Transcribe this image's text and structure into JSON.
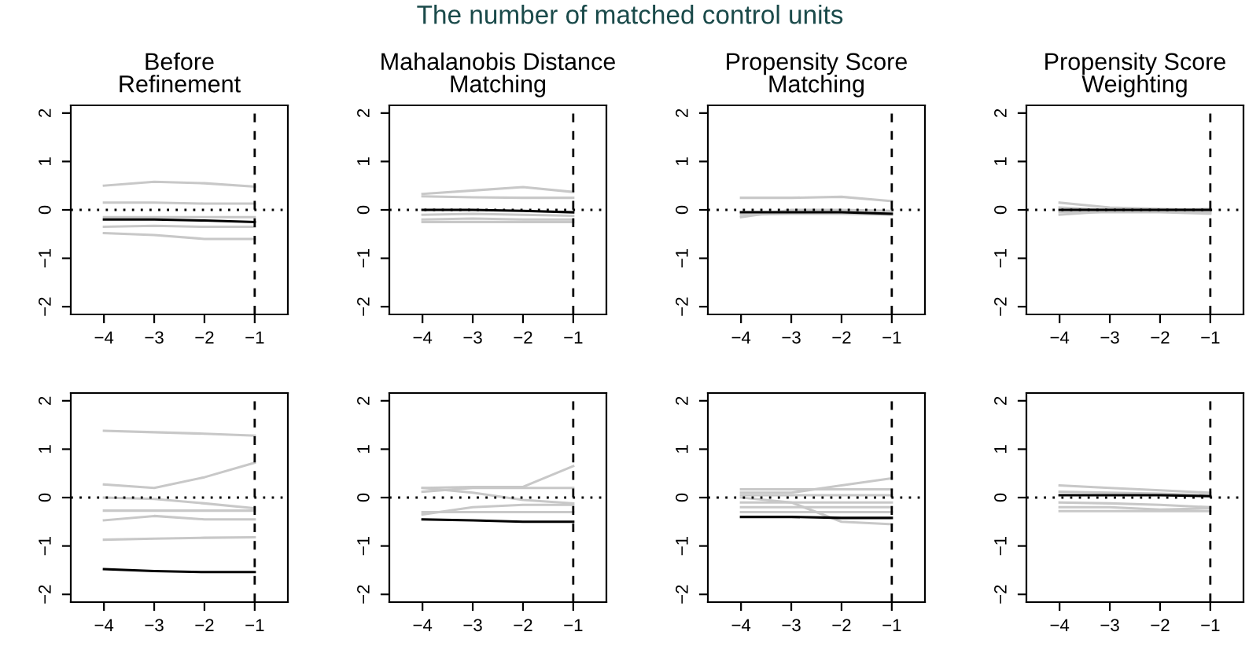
{
  "chart_data": [
    {
      "type": "line",
      "title": "Before\nRefinement",
      "annotations": [
        "The number of matched control units"
      ],
      "x": [
        -4,
        -3,
        -2,
        -1
      ],
      "xlim": [
        -4.66,
        -0.34
      ],
      "xticks": [
        -4,
        -3,
        -2,
        -1
      ],
      "ylim": [
        -2.16,
        2.16
      ],
      "yticks": [
        -2,
        -1,
        0,
        1,
        2
      ],
      "grid": false,
      "marker": "none",
      "line_style": "solid",
      "ref_lines": [
        {
          "axis": "y",
          "value": 0,
          "line_style": "dotted",
          "color": "#000000"
        },
        {
          "axis": "x",
          "value": -1,
          "line_style": "dashed",
          "color": "#000000"
        }
      ],
      "series": [
        {
          "color": "#c8c8c8",
          "values": [
            0.5,
            0.58,
            0.55,
            0.48
          ]
        },
        {
          "color": "#c8c8c8",
          "values": [
            0.15,
            0.15,
            0.13,
            0.13
          ]
        },
        {
          "color": "#c8c8c8",
          "values": [
            -0.15,
            -0.15,
            -0.15,
            -0.15
          ]
        },
        {
          "color": "#c8c8c8",
          "values": [
            -0.35,
            -0.33,
            -0.35,
            -0.35
          ]
        },
        {
          "color": "#c8c8c8",
          "values": [
            -0.48,
            -0.52,
            -0.6,
            -0.6
          ]
        },
        {
          "color": "#000000",
          "values": [
            -0.2,
            -0.2,
            -0.22,
            -0.25
          ]
        }
      ]
    },
    {
      "type": "line",
      "title": "Mahalanobis Distance\nMatching",
      "x": [
        -4,
        -3,
        -2,
        -1
      ],
      "xlim": [
        -4.66,
        -0.34
      ],
      "xticks": [
        -4,
        -3,
        -2,
        -1
      ],
      "ylim": [
        -2.16,
        2.16
      ],
      "yticks": [
        -2,
        -1,
        0,
        1,
        2
      ],
      "grid": false,
      "marker": "none",
      "line_style": "solid",
      "ref_lines": [
        {
          "axis": "y",
          "value": 0,
          "line_style": "dotted",
          "color": "#000000"
        },
        {
          "axis": "x",
          "value": -1,
          "line_style": "dashed",
          "color": "#000000"
        }
      ],
      "series": [
        {
          "color": "#c8c8c8",
          "values": [
            0.33,
            0.4,
            0.47,
            0.37
          ]
        },
        {
          "color": "#c8c8c8",
          "values": [
            0.28,
            0.26,
            0.25,
            0.25
          ]
        },
        {
          "color": "#c8c8c8",
          "values": [
            -0.1,
            -0.08,
            -0.1,
            -0.12
          ]
        },
        {
          "color": "#c8c8c8",
          "values": [
            -0.2,
            -0.18,
            -0.2,
            -0.2
          ]
        },
        {
          "color": "#c8c8c8",
          "values": [
            -0.25,
            -0.25,
            -0.25,
            -0.25
          ]
        },
        {
          "color": "#000000",
          "values": [
            0,
            0,
            -0.02,
            -0.05
          ]
        }
      ]
    },
    {
      "type": "line",
      "title": "Propensity Score\nMatching",
      "x": [
        -4,
        -3,
        -2,
        -1
      ],
      "xlim": [
        -4.66,
        -0.34
      ],
      "xticks": [
        -4,
        -3,
        -2,
        -1
      ],
      "ylim": [
        -2.16,
        2.16
      ],
      "yticks": [
        -2,
        -1,
        0,
        1,
        2
      ],
      "grid": false,
      "marker": "none",
      "line_style": "solid",
      "ref_lines": [
        {
          "axis": "y",
          "value": 0,
          "line_style": "dotted",
          "color": "#000000"
        },
        {
          "axis": "x",
          "value": -1,
          "line_style": "dashed",
          "color": "#000000"
        }
      ],
      "series": [
        {
          "color": "#c8c8c8",
          "values": [
            0.25,
            0.25,
            0.27,
            0.18
          ]
        },
        {
          "color": "#c8c8c8",
          "values": [
            -0.05,
            -0.05,
            -0.05,
            -0.05
          ]
        },
        {
          "color": "#c8c8c8",
          "values": [
            -0.1,
            -0.08,
            -0.08,
            -0.1
          ]
        },
        {
          "color": "#c8c8c8",
          "values": [
            -0.15,
            0,
            0,
            -0.02
          ]
        },
        {
          "color": "#000000",
          "values": [
            -0.05,
            -0.05,
            -0.05,
            -0.08
          ]
        }
      ]
    },
    {
      "type": "line",
      "title": "Propensity Score\nWeighting",
      "x": [
        -4,
        -3,
        -2,
        -1
      ],
      "xlim": [
        -4.66,
        -0.34
      ],
      "xticks": [
        -4,
        -3,
        -2,
        -1
      ],
      "ylim": [
        -2.16,
        2.16
      ],
      "yticks": [
        -2,
        -1,
        0,
        1,
        2
      ],
      "grid": false,
      "marker": "none",
      "line_style": "solid",
      "ref_lines": [
        {
          "axis": "y",
          "value": 0,
          "line_style": "dotted",
          "color": "#000000"
        },
        {
          "axis": "x",
          "value": -1,
          "line_style": "dashed",
          "color": "#000000"
        }
      ],
      "series": [
        {
          "color": "#c8c8c8",
          "values": [
            0.15,
            0.05,
            0.02,
            0
          ]
        },
        {
          "color": "#c8c8c8",
          "values": [
            -0.1,
            -0.03,
            0,
            -0.05
          ]
        },
        {
          "color": "#c8c8c8",
          "values": [
            0.05,
            0,
            0,
            0.02
          ]
        },
        {
          "color": "#c8c8c8",
          "values": [
            -0.05,
            -0.05,
            -0.05,
            -0.08
          ]
        },
        {
          "color": "#000000",
          "values": [
            0,
            0,
            0,
            0
          ]
        }
      ]
    },
    {
      "type": "line",
      "x": [
        -4,
        -3,
        -2,
        -1
      ],
      "xlim": [
        -4.66,
        -0.34
      ],
      "xticks": [
        -4,
        -3,
        -2,
        -1
      ],
      "ylim": [
        -2.16,
        2.16
      ],
      "yticks": [
        -2,
        -1,
        0,
        1,
        2
      ],
      "grid": false,
      "marker": "none",
      "line_style": "solid",
      "ref_lines": [
        {
          "axis": "y",
          "value": 0,
          "line_style": "dotted",
          "color": "#000000"
        },
        {
          "axis": "x",
          "value": -1,
          "line_style": "dashed",
          "color": "#000000"
        }
      ],
      "series": [
        {
          "color": "#c8c8c8",
          "values": [
            1.38,
            1.35,
            1.32,
            1.28
          ]
        },
        {
          "color": "#c8c8c8",
          "values": [
            0.27,
            0.2,
            0.42,
            0.72
          ]
        },
        {
          "color": "#c8c8c8",
          "values": [
            0,
            -0.03,
            -0.12,
            -0.22
          ]
        },
        {
          "color": "#c8c8c8",
          "values": [
            -0.27,
            -0.27,
            -0.27,
            -0.27
          ]
        },
        {
          "color": "#c8c8c8",
          "values": [
            -0.47,
            -0.38,
            -0.45,
            -0.45
          ]
        },
        {
          "color": "#c8c8c8",
          "values": [
            -0.87,
            -0.85,
            -0.83,
            -0.82
          ]
        },
        {
          "color": "#000000",
          "values": [
            -1.48,
            -1.52,
            -1.54,
            -1.54
          ]
        }
      ]
    },
    {
      "type": "line",
      "x": [
        -4,
        -3,
        -2,
        -1
      ],
      "xlim": [
        -4.66,
        -0.34
      ],
      "xticks": [
        -4,
        -3,
        -2,
        -1
      ],
      "ylim": [
        -2.16,
        2.16
      ],
      "yticks": [
        -2,
        -1,
        0,
        1,
        2
      ],
      "grid": false,
      "marker": "none",
      "line_style": "solid",
      "ref_lines": [
        {
          "axis": "y",
          "value": 0,
          "line_style": "dotted",
          "color": "#000000"
        },
        {
          "axis": "x",
          "value": -1,
          "line_style": "dashed",
          "color": "#000000"
        }
      ],
      "series": [
        {
          "color": "#c8c8c8",
          "values": [
            0.2,
            0.22,
            0.22,
            0.65
          ]
        },
        {
          "color": "#c8c8c8",
          "values": [
            0.12,
            0.2,
            0.2,
            0.2
          ]
        },
        {
          "color": "#c8c8c8",
          "values": [
            0.2,
            0.1,
            -0.05,
            -0.12
          ]
        },
        {
          "color": "#c8c8c8",
          "values": [
            -0.35,
            -0.2,
            -0.15,
            -0.15
          ]
        },
        {
          "color": "#c8c8c8",
          "values": [
            -0.3,
            -0.3,
            -0.3,
            -0.3
          ]
        },
        {
          "color": "#000000",
          "values": [
            -0.45,
            -0.47,
            -0.5,
            -0.5
          ]
        }
      ]
    },
    {
      "type": "line",
      "x": [
        -4,
        -3,
        -2,
        -1
      ],
      "xlim": [
        -4.66,
        -0.34
      ],
      "xticks": [
        -4,
        -3,
        -2,
        -1
      ],
      "ylim": [
        -2.16,
        2.16
      ],
      "yticks": [
        -2,
        -1,
        0,
        1,
        2
      ],
      "grid": false,
      "marker": "none",
      "line_style": "solid",
      "ref_lines": [
        {
          "axis": "y",
          "value": 0,
          "line_style": "dotted",
          "color": "#000000"
        },
        {
          "axis": "x",
          "value": -1,
          "line_style": "dashed",
          "color": "#000000"
        }
      ],
      "series": [
        {
          "color": "#c8c8c8",
          "values": [
            0.17,
            0.17,
            0.17,
            0.17
          ]
        },
        {
          "color": "#c8c8c8",
          "values": [
            0.1,
            0.1,
            0.25,
            0.4
          ]
        },
        {
          "color": "#c8c8c8",
          "values": [
            0.05,
            0.05,
            0.05,
            0.05
          ]
        },
        {
          "color": "#c8c8c8",
          "values": [
            -0.1,
            -0.1,
            -0.1,
            -0.1
          ]
        },
        {
          "color": "#c8c8c8",
          "values": [
            -0.2,
            -0.2,
            -0.2,
            -0.2
          ]
        },
        {
          "color": "#c8c8c8",
          "values": [
            0,
            -0.1,
            -0.5,
            -0.55
          ]
        },
        {
          "color": "#c8c8c8",
          "values": [
            -0.3,
            -0.3,
            -0.3,
            -0.3
          ]
        },
        {
          "color": "#000000",
          "values": [
            -0.4,
            -0.4,
            -0.42,
            -0.42
          ]
        }
      ]
    },
    {
      "type": "line",
      "x": [
        -4,
        -3,
        -2,
        -1
      ],
      "xlim": [
        -4.66,
        -0.34
      ],
      "xticks": [
        -4,
        -3,
        -2,
        -1
      ],
      "ylim": [
        -2.16,
        2.16
      ],
      "yticks": [
        -2,
        -1,
        0,
        1,
        2
      ],
      "grid": false,
      "marker": "none",
      "line_style": "solid",
      "ref_lines": [
        {
          "axis": "y",
          "value": 0,
          "line_style": "dotted",
          "color": "#000000"
        },
        {
          "axis": "x",
          "value": -1,
          "line_style": "dashed",
          "color": "#000000"
        }
      ],
      "series": [
        {
          "color": "#c8c8c8",
          "values": [
            0.25,
            0.2,
            0.15,
            0.1
          ]
        },
        {
          "color": "#c8c8c8",
          "values": [
            0.12,
            0.1,
            0.08,
            0.05
          ]
        },
        {
          "color": "#c8c8c8",
          "values": [
            -0.1,
            -0.12,
            -0.15,
            -0.2
          ]
        },
        {
          "color": "#c8c8c8",
          "values": [
            -0.2,
            -0.2,
            -0.25,
            -0.22
          ]
        },
        {
          "color": "#c8c8c8",
          "values": [
            -0.28,
            -0.28,
            -0.28,
            -0.28
          ]
        },
        {
          "color": "#000000",
          "values": [
            0.05,
            0.05,
            0.05,
            0.03
          ]
        }
      ]
    }
  ]
}
